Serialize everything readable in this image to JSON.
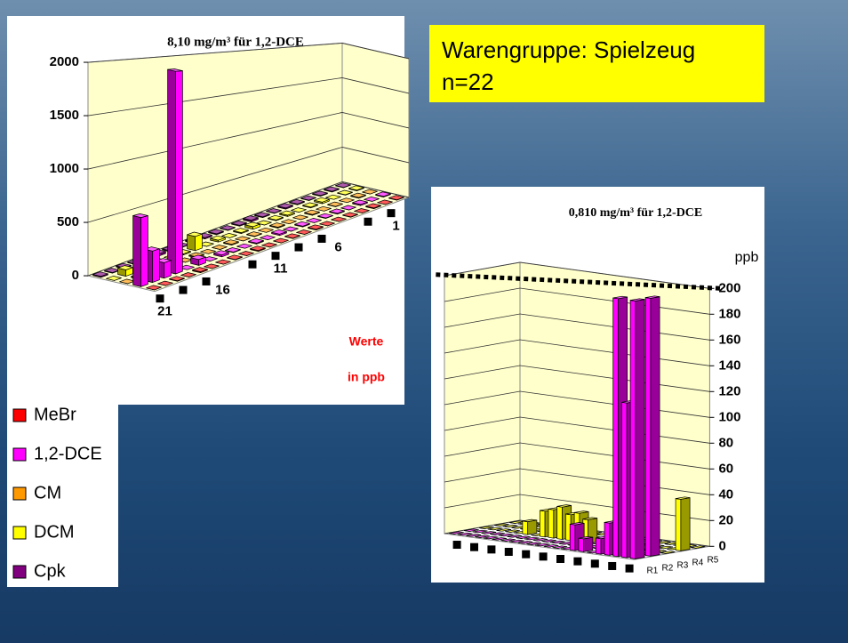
{
  "header": {
    "title": "Warengruppe: Spielzeug",
    "subtitle": "n=22"
  },
  "chart_data": [
    {
      "type": "bar3d",
      "title": "8,10 mg/m³ für 1,2-DCE",
      "categories": [
        "1",
        null,
        null,
        null,
        null,
        "6",
        null,
        null,
        null,
        null,
        "11",
        null,
        null,
        null,
        null,
        "16",
        null,
        null,
        null,
        null,
        "21",
        null
      ],
      "series": [
        {
          "name": "MeBr",
          "color": "#ff0000",
          "values": [
            5,
            0,
            10,
            0,
            5,
            0,
            0,
            10,
            0,
            5,
            0,
            0,
            10,
            0,
            5,
            0,
            0,
            10,
            0,
            5,
            0,
            0
          ]
        },
        {
          "name": "1,2-DCE",
          "color": "#ff00ff",
          "values": [
            10,
            0,
            15,
            0,
            10,
            5,
            0,
            10,
            0,
            15,
            0,
            10,
            0,
            5,
            20,
            0,
            60,
            0,
            2000,
            150,
            300,
            650
          ]
        },
        {
          "name": "CM",
          "color": "#ff9900",
          "values": [
            0,
            10,
            0,
            5,
            0,
            10,
            0,
            0,
            10,
            0,
            5,
            0,
            10,
            0,
            0,
            10,
            0,
            5,
            0,
            0,
            10,
            0
          ]
        },
        {
          "name": "DCM",
          "color": "#ffff00",
          "values": [
            10,
            5,
            0,
            20,
            10,
            0,
            15,
            10,
            0,
            30,
            10,
            0,
            20,
            0,
            150,
            10,
            0,
            5,
            0,
            10,
            60,
            0
          ]
        },
        {
          "name": "Cpk",
          "color": "#800080",
          "values": [
            5,
            10,
            10,
            5,
            10,
            15,
            5,
            10,
            20,
            10,
            5,
            10,
            15,
            10,
            5,
            10,
            20,
            10,
            5,
            10,
            5,
            10
          ]
        }
      ],
      "ylim": [
        0,
        2000
      ],
      "yticks": [
        0,
        500,
        1000,
        1500,
        2000
      ],
      "grid": true,
      "legend": "left",
      "annotations": [
        "Werte",
        "in ppb"
      ]
    },
    {
      "type": "bar3d",
      "title": "0,810 mg/m³ für 1,2-DCE",
      "y_label": "ppb",
      "categories": [
        null,
        null,
        null,
        null,
        null,
        null,
        null,
        null,
        null,
        null,
        null,
        null,
        null,
        null,
        null,
        null,
        null,
        null,
        null,
        null,
        null,
        null
      ],
      "series": [
        {
          "name": "R1",
          "color": "#ff00ff",
          "values": [
            0,
            0,
            0,
            0,
            0,
            0,
            0,
            0,
            0,
            0,
            0,
            0,
            0,
            0,
            20,
            10,
            0,
            12,
            25,
            200,
            120,
            200
          ]
        },
        {
          "name": "R2",
          "color": "#ff00ff",
          "values": [
            0,
            0,
            0,
            0,
            0,
            0,
            0,
            0,
            0,
            0,
            0,
            0,
            0,
            0,
            0,
            0,
            0,
            0,
            0,
            0,
            0,
            200
          ]
        },
        {
          "name": "R3",
          "color": "#ffff00",
          "values": [
            0,
            0,
            0,
            0,
            0,
            10,
            0,
            20,
            22,
            25,
            20,
            22,
            18,
            0,
            0,
            0,
            0,
            0,
            0,
            0,
            0,
            0
          ]
        },
        {
          "name": "R4",
          "color": "#ffff00",
          "values": [
            0,
            0,
            0,
            0,
            0,
            0,
            0,
            0,
            0,
            0,
            0,
            0,
            0,
            0,
            0,
            0,
            0,
            0,
            0,
            0,
            0,
            40
          ]
        },
        {
          "name": "R5",
          "color": "#ffff00",
          "values": [
            0,
            0,
            0,
            0,
            0,
            0,
            0,
            0,
            0,
            0,
            0,
            0,
            0,
            0,
            0,
            0,
            0,
            0,
            0,
            0,
            0,
            0
          ]
        }
      ],
      "ylim": [
        0,
        200
      ],
      "yticks": [
        0,
        20,
        40,
        60,
        80,
        100,
        120,
        140,
        160,
        180,
        200
      ],
      "grid": true,
      "threshold": 200
    }
  ]
}
